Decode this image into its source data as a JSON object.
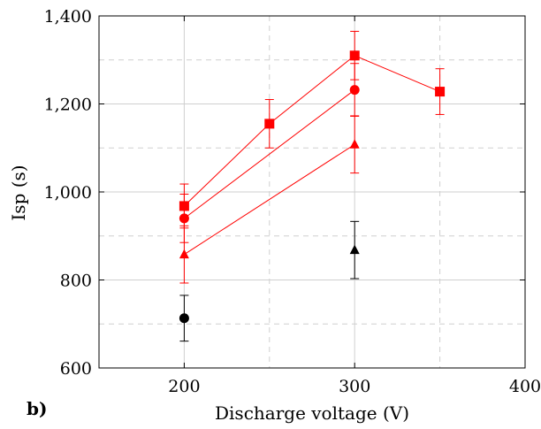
{
  "panel_label": "b)",
  "chart_data": {
    "type": "scatter",
    "title": "",
    "xlabel": "Discharge voltage (V)",
    "ylabel": "Isp (s)",
    "xlim": [
      150,
      400
    ],
    "ylim": [
      600,
      1400
    ],
    "x_ticks": [
      200,
      300,
      400
    ],
    "x_tick_labels": [
      "200",
      "300",
      "400"
    ],
    "y_ticks": [
      600,
      800,
      1000,
      1200,
      1400
    ],
    "y_tick_labels": [
      "600",
      "800",
      "1,000",
      "1,200",
      "1,400"
    ],
    "grid": true,
    "legend": "none",
    "series": [
      {
        "marker": "square",
        "color": "#ff0000",
        "line": true,
        "points": [
          {
            "x": 200,
            "y": 968,
            "err": 50
          },
          {
            "x": 250,
            "y": 1155,
            "err": 55
          },
          {
            "x": 300,
            "y": 1310,
            "err": 55
          },
          {
            "x": 350,
            "y": 1228,
            "err": 52
          }
        ]
      },
      {
        "marker": "circle",
        "color": "#ff0000",
        "line": true,
        "points": [
          {
            "x": 200,
            "y": 940,
            "err": 55
          },
          {
            "x": 300,
            "y": 1232,
            "err": 60
          }
        ]
      },
      {
        "marker": "triangle",
        "color": "#ff0000",
        "line": true,
        "points": [
          {
            "x": 200,
            "y": 858,
            "err": 65
          },
          {
            "x": 300,
            "y": 1108,
            "err": 65
          }
        ]
      },
      {
        "marker": "circle",
        "color": "#000000",
        "line": false,
        "points": [
          {
            "x": 200,
            "y": 713,
            "err": 52
          }
        ]
      },
      {
        "marker": "triangle",
        "color": "#000000",
        "line": false,
        "points": [
          {
            "x": 300,
            "y": 868,
            "err": 65
          }
        ]
      }
    ]
  }
}
